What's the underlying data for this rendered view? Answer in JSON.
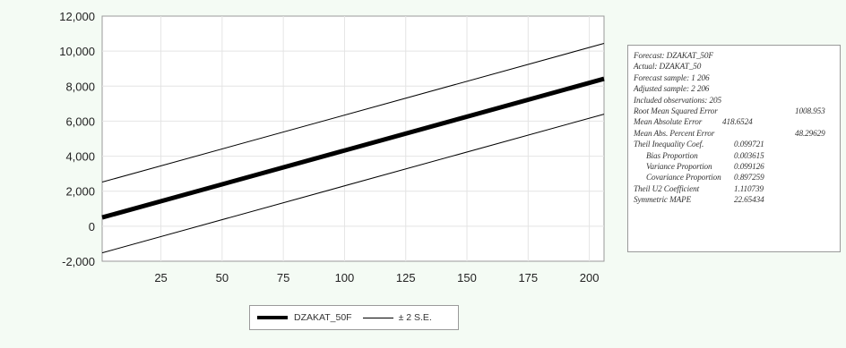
{
  "chart_data": {
    "type": "line",
    "x_ticks": [
      25,
      50,
      75,
      100,
      125,
      150,
      175,
      200
    ],
    "y_ticks": [
      "12,000",
      "10,000",
      "8,000",
      "6,000",
      "4,000",
      "2,000",
      "0",
      "-2,000"
    ],
    "y_tick_values": [
      12000,
      10000,
      8000,
      6000,
      4000,
      2000,
      0,
      -2000
    ],
    "xlim": [
      1,
      206
    ],
    "ylim": [
      -2000,
      12000
    ],
    "grid": true,
    "series": [
      {
        "name": "DZAKAT_50F",
        "x": [
          1,
          206
        ],
        "y": [
          500,
          8420
        ],
        "style": "thick"
      },
      {
        "name": "± 2 S.E.",
        "x": [
          1,
          206
        ],
        "y": [
          2520,
          10440
        ],
        "style": "thin"
      },
      {
        "x": [
          1,
          206
        ],
        "y": [
          -1520,
          6400
        ],
        "style": "thin"
      }
    ],
    "legend": {
      "position": "bottom-center",
      "entries": [
        "DZAKAT_50F",
        "± 2 S.E."
      ]
    }
  },
  "stats": [
    {
      "label": "Forecast: DZAKAT_50F",
      "value": "",
      "indent": false
    },
    {
      "label": "Actual: DZAKAT_50",
      "value": "",
      "indent": false
    },
    {
      "label": "Forecast sample: 1 206",
      "value": "",
      "indent": false
    },
    {
      "label": "Adjusted sample: 2 206",
      "value": "",
      "indent": false
    },
    {
      "label": "Included observations: 205",
      "value": "",
      "indent": false
    },
    {
      "label": "Root Mean Squared Error",
      "value": "1008.953",
      "indent": false
    },
    {
      "label": "Mean Absolute Error",
      "value": "418.6524",
      "indent": false
    },
    {
      "label": "Mean Abs. Percent Error",
      "value": "48.29629",
      "indent": false
    },
    {
      "label": "Theil Inequality Coef.",
      "value": "0.099721",
      "indent": false
    },
    {
      "label": "Bias Proportion",
      "value": "0.003615",
      "indent": true
    },
    {
      "label": "Variance Proportion",
      "value": "0.099126",
      "indent": true
    },
    {
      "label": "Covariance Proportion",
      "value": "0.897259",
      "indent": true
    },
    {
      "label": "Theil U2 Coefficient",
      "value": "1.110739",
      "indent": false
    },
    {
      "label": "Symmetric MAPE",
      "value": "22.65434",
      "indent": false
    }
  ],
  "legend_labels": {
    "main": "DZAKAT_50F",
    "band": "± 2 S.E."
  }
}
